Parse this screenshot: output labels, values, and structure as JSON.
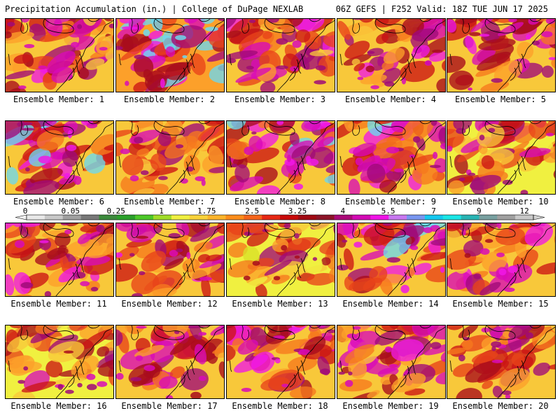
{
  "header": {
    "left": "Precipitation Accumulation (in.) | College of DuPage NEXLAB",
    "right": "06Z GEFS | F252 Valid: 18Z TUE JUN 17 2025"
  },
  "members": [
    {
      "label": "Ensemble Member: 1",
      "intensity": 0.55
    },
    {
      "label": "Ensemble Member: 2",
      "intensity": 0.85
    },
    {
      "label": "Ensemble Member: 3",
      "intensity": 0.6
    },
    {
      "label": "Ensemble Member: 4",
      "intensity": 0.55
    },
    {
      "label": "Ensemble Member: 5",
      "intensity": 0.6
    },
    {
      "label": "Ensemble Member: 6",
      "intensity": 0.75
    },
    {
      "label": "Ensemble Member: 7",
      "intensity": 0.5
    },
    {
      "label": "Ensemble Member: 8",
      "intensity": 0.75
    },
    {
      "label": "Ensemble Member: 9",
      "intensity": 0.7
    },
    {
      "label": "Ensemble Member: 10",
      "intensity": 0.45
    },
    {
      "label": "Ensemble Member: 11",
      "intensity": 0.6
    },
    {
      "label": "Ensemble Member: 12",
      "intensity": 0.6
    },
    {
      "label": "Ensemble Member: 13",
      "intensity": 0.35
    },
    {
      "label": "Ensemble Member: 14",
      "intensity": 0.7
    },
    {
      "label": "Ensemble Member: 15",
      "intensity": 0.55
    },
    {
      "label": "Ensemble Member: 16",
      "intensity": 0.45
    },
    {
      "label": "Ensemble Member: 17",
      "intensity": 0.55
    },
    {
      "label": "Ensemble Member: 18",
      "intensity": 0.6
    },
    {
      "label": "Ensemble Member: 19",
      "intensity": 0.55
    },
    {
      "label": "Ensemble Member: 20",
      "intensity": 0.55
    }
  ],
  "colorbar": {
    "labels": [
      "0",
      "0.05",
      "0.25",
      "1",
      "1.75",
      "2.5",
      "3.25",
      "4",
      "5.5",
      "7",
      "9",
      "12"
    ],
    "colors": [
      "#e8e8e8",
      "#c8c8c8",
      "#a0a0a0",
      "#787878",
      "#3c8a3c",
      "#2aa02a",
      "#4cc828",
      "#a0dc28",
      "#f0f040",
      "#f8d23a",
      "#fcb42a",
      "#fc8c1a",
      "#f4641a",
      "#e62814",
      "#c80a0a",
      "#a00a14",
      "#8c1428",
      "#aa0a78",
      "#d20ab4",
      "#f014e6",
      "#c878f0",
      "#7896f0",
      "#14c8f0",
      "#1ae6e6",
      "#28b4b4",
      "#78a0a0",
      "#a0a0a0",
      "#c8c8c8"
    ]
  }
}
